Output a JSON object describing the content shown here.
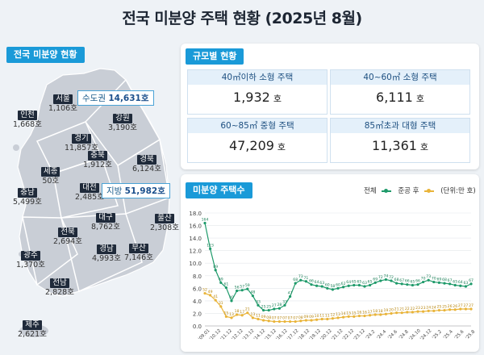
{
  "title": "전국 미분양 주택 현황 (2025년 8월)",
  "map_panel": {
    "tag": "전국 미분양 현황",
    "regions": [
      {
        "id": "seoul",
        "name": "서울",
        "value": "1,106호"
      },
      {
        "id": "incheon",
        "name": "인천",
        "value": "1,668호"
      },
      {
        "id": "gangwon",
        "name": "강원",
        "value": "3,190호"
      },
      {
        "id": "gyeonggi",
        "name": "경기",
        "value": "11,857호"
      },
      {
        "id": "chungbuk",
        "name": "충북",
        "value": "1,912호"
      },
      {
        "id": "gyeongbuk",
        "name": "경북",
        "value": "6,124호"
      },
      {
        "id": "sejong",
        "name": "세종",
        "value": "50호"
      },
      {
        "id": "daejeon",
        "name": "대전",
        "value": "2,485호"
      },
      {
        "id": "chungnam",
        "name": "충남",
        "value": "5,499호"
      },
      {
        "id": "daegu",
        "name": "대구",
        "value": "8,762호"
      },
      {
        "id": "ulsan",
        "name": "울산",
        "value": "2,308호"
      },
      {
        "id": "jeonbuk",
        "name": "전북",
        "value": "2,694호"
      },
      {
        "id": "gyeongnam",
        "name": "경남",
        "value": "4,993호"
      },
      {
        "id": "busan",
        "name": "부산",
        "value": "7,146호"
      },
      {
        "id": "gwangju",
        "name": "광주",
        "value": "1,370호"
      },
      {
        "id": "jeonnam",
        "name": "전남",
        "value": "2,828호"
      },
      {
        "id": "jeju",
        "name": "제주",
        "value": "2,621호"
      }
    ],
    "capital_label": "수도권",
    "capital_value": "14,631호",
    "local_label": "지방",
    "local_value": "51,982호"
  },
  "size_panel": {
    "tag": "규모별 현황",
    "unit": "호",
    "cells": [
      {
        "label": "40㎡이하 소형 주택",
        "value": "1,932"
      },
      {
        "label": "40~60㎡ 소형 주택",
        "value": "6,111"
      },
      {
        "label": "60~85㎡ 중형 주택",
        "value": "47,209"
      },
      {
        "label": "85㎡초과 대형 주택",
        "value": "11,361"
      }
    ]
  },
  "colors": {
    "total": "#1e9a6a",
    "completed": "#e9b43a",
    "accent": "#1a9ad8",
    "map": "#c9ced6"
  },
  "chart_data": {
    "type": "line",
    "tag": "미분양 주택수",
    "legend": [
      "전체",
      "준공 후",
      "(단위:만 호)"
    ],
    "ylim": [
      0,
      18
    ],
    "yticks": [
      "0.0",
      "2.0",
      "4.0",
      "6.0",
      "8.0",
      "10.0",
      "12.0",
      "14.0",
      "16.0",
      "18.0"
    ],
    "xticks": [
      "'09.01",
      "'10.12",
      "'11.12",
      "'12.12",
      "'13.12",
      "'14.12",
      "'15.12",
      "'16.12",
      "'17.12",
      "'18.12",
      "'19.12",
      "'20.12",
      "'21.12",
      "'22.12",
      "'23.12",
      "'24.2",
      "'24.4",
      "'24.6",
      "'24.8",
      "'24.10",
      "'24.12",
      "'25.2",
      "'25.4",
      "'25.6",
      "'25.8"
    ],
    "series": [
      {
        "name": "전체",
        "values": [
          16.4,
          12.3,
          8.9,
          6.9,
          6.1,
          4.0,
          5.6,
          5.7,
          5.9,
          4.8,
          3.3,
          2.5,
          2.5,
          2.7,
          2.8,
          3.3,
          4.7,
          6.8,
          7.3,
          7.1,
          6.6,
          6.4,
          6.3,
          6.0,
          5.8,
          6.0,
          6.2,
          6.4,
          6.5,
          6.5,
          6.3,
          6.5,
          6.9,
          7.2,
          7.4,
          7.2,
          6.8,
          6.7,
          6.6,
          6.5,
          6.6,
          7.0,
          7.3,
          7.0,
          6.9,
          6.8,
          6.7,
          6.5,
          6.4,
          6.3,
          6.7
        ]
      },
      {
        "name": "준공 후",
        "values": [
          5.2,
          4.9,
          4.1,
          3.1,
          1.5,
          1.3,
          1.8,
          1.7,
          2.1,
          1.3,
          1.1,
          0.9,
          0.8,
          0.7,
          0.7,
          0.7,
          0.7,
          0.7,
          0.8,
          0.9,
          0.9,
          1.0,
          1.1,
          1.1,
          1.2,
          1.3,
          1.4,
          1.5,
          1.5,
          1.6,
          1.6,
          1.7,
          1.8,
          1.8,
          1.9,
          2.0,
          2.1,
          2.1,
          2.2,
          2.2,
          2.3,
          2.3,
          2.4,
          2.4,
          2.5,
          2.5,
          2.6,
          2.6,
          2.7,
          2.7,
          2.7
        ]
      }
    ],
    "labels_total": [
      "164",
      "123",
      "89",
      "69",
      "61",
      "40",
      "56",
      "57",
      "59",
      "48",
      "33",
      "25",
      "25",
      "27",
      "28",
      "33",
      "47",
      "68",
      "73",
      "71",
      "66",
      "64",
      "63",
      "60",
      "58",
      "60",
      "62",
      "64",
      "65",
      "65",
      "63",
      "65",
      "69",
      "72",
      "74",
      "72",
      "68",
      "67",
      "66",
      "65",
      "66",
      "70",
      "73",
      "70",
      "69",
      "68",
      "67",
      "65",
      "64",
      "63",
      "67"
    ],
    "labels_completed": [
      "52",
      "49",
      "41",
      "31",
      "15",
      "13",
      "18",
      "17",
      "21",
      "13",
      "11",
      "09",
      "08",
      "07",
      "07",
      "07",
      "07",
      "07",
      "08",
      "09",
      "09",
      "10",
      "11",
      "11",
      "12",
      "13",
      "14",
      "15",
      "15",
      "16",
      "16",
      "17",
      "18",
      "18",
      "19",
      "20",
      "21",
      "21",
      "22",
      "22",
      "23",
      "23",
      "24",
      "24",
      "25",
      "25",
      "26",
      "26",
      "27",
      "27",
      "27"
    ]
  }
}
